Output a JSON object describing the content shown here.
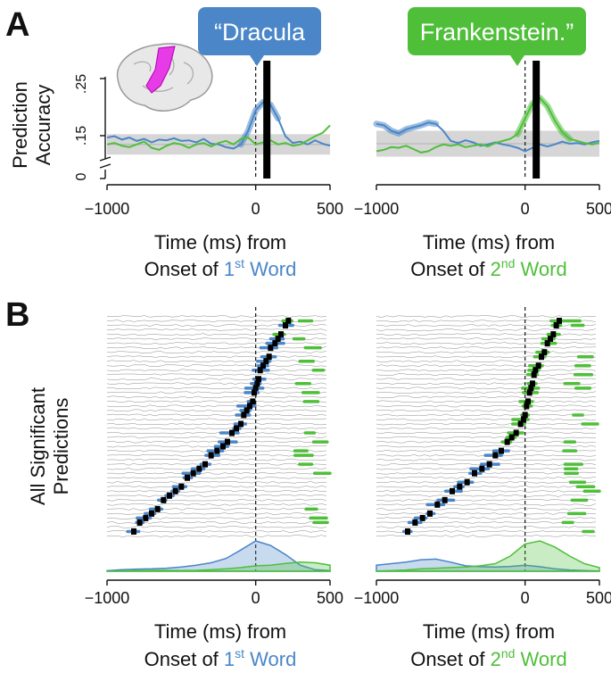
{
  "colors": {
    "blue": "#4a86c8",
    "green": "#4fbf3a",
    "magenta": "#e63be6",
    "band": "#d6d6d6",
    "trace": "#8a8a8a"
  },
  "panels": {
    "a": {
      "label": "A"
    },
    "b": {
      "label": "B"
    }
  },
  "callouts": {
    "word1": "“Dracula",
    "word2": "Frankenstein.”"
  },
  "axis": {
    "ylabel_line1": "Prediction",
    "ylabel_line2": "Accuracy",
    "raster_ylabel_line1": "All Significant",
    "raster_ylabel_line2": "Predictions",
    "xlabel_line1": "Time (ms) from",
    "xlabel_left": {
      "prefix": "Onset of ",
      "ord_num": "1",
      "ord_sup": "st",
      "word": " Word"
    },
    "xlabel_right": {
      "prefix": "Onset of ",
      "ord_num": "2",
      "ord_sup": "nd",
      "word": " Word"
    }
  },
  "chart_data": [
    {
      "id": "a-left",
      "type": "line",
      "title": "",
      "xlabel": "Time (ms) from Onset of 1st Word",
      "ylabel": "Prediction Accuracy",
      "xlim": [
        -1000,
        500
      ],
      "ylim": [
        0.1,
        0.27
      ],
      "x_ticks": [
        -1000,
        0,
        500
      ],
      "x_tick_labels": [
        "−1000",
        "0",
        "500"
      ],
      "y_ticks": [
        0.1,
        0.15,
        0.25
      ],
      "y_tick_labels": [
        "0",
        ".15",
        ".25"
      ],
      "axis_break": true,
      "null_band": {
        "x": [
          -1000,
          500
        ],
        "lower": 0.135,
        "upper": 0.165
      },
      "null_mean": 0.15,
      "vline_x": 0,
      "bar_x": 75,
      "series": [
        {
          "name": "word1",
          "color": "blue",
          "x": [
            -1000,
            -950,
            -900,
            -850,
            -800,
            -750,
            -700,
            -650,
            -600,
            -550,
            -500,
            -450,
            -400,
            -350,
            -300,
            -250,
            -200,
            -150,
            -100,
            -50,
            0,
            50,
            100,
            150,
            200,
            250,
            300,
            350,
            400,
            450,
            500
          ],
          "y": [
            0.16,
            0.162,
            0.157,
            0.16,
            0.155,
            0.158,
            0.153,
            0.157,
            0.156,
            0.159,
            0.155,
            0.156,
            0.153,
            0.158,
            0.151,
            0.15,
            0.146,
            0.144,
            0.15,
            0.17,
            0.2,
            0.212,
            0.208,
            0.188,
            0.162,
            0.152,
            0.154,
            0.15,
            0.156,
            0.151,
            0.148
          ],
          "significant_from": -100,
          "significant_to": 160
        },
        {
          "name": "word2",
          "color": "green",
          "x": [
            -1000,
            -950,
            -900,
            -850,
            -800,
            -750,
            -700,
            -650,
            -600,
            -550,
            -500,
            -450,
            -400,
            -350,
            -300,
            -250,
            -200,
            -150,
            -100,
            -50,
            0,
            50,
            100,
            150,
            200,
            250,
            300,
            350,
            400,
            450,
            500
          ],
          "y": [
            0.15,
            0.152,
            0.148,
            0.146,
            0.15,
            0.154,
            0.145,
            0.142,
            0.148,
            0.152,
            0.15,
            0.145,
            0.15,
            0.152,
            0.147,
            0.152,
            0.155,
            0.15,
            0.158,
            0.16,
            0.15,
            0.153,
            0.156,
            0.15,
            0.152,
            0.148,
            0.15,
            0.156,
            0.162,
            0.167,
            0.178
          ]
        }
      ]
    },
    {
      "id": "a-right",
      "type": "line",
      "title": "",
      "xlabel": "Time (ms) from Onset of 2nd Word",
      "ylabel": "Prediction Accuracy",
      "xlim": [
        -1000,
        500
      ],
      "ylim": [
        0.1,
        0.27
      ],
      "x_ticks": [
        -1000,
        0,
        500
      ],
      "x_tick_labels": [
        "−1000",
        "0",
        "500"
      ],
      "null_band": {
        "x": [
          -1000,
          500
        ],
        "lower": 0.132,
        "upper": 0.17
      },
      "null_mean": 0.151,
      "vline_x": 0,
      "bar_x": 75,
      "series": [
        {
          "name": "word1",
          "color": "blue",
          "x": [
            -1000,
            -950,
            -900,
            -850,
            -800,
            -750,
            -700,
            -650,
            -600,
            -550,
            -500,
            -450,
            -400,
            -350,
            -300,
            -250,
            -200,
            -150,
            -100,
            -50,
            0,
            50,
            100,
            150,
            200,
            250,
            300,
            350,
            400,
            450,
            500
          ],
          "y": [
            0.18,
            0.178,
            0.17,
            0.166,
            0.172,
            0.175,
            0.178,
            0.182,
            0.18,
            0.17,
            0.155,
            0.152,
            0.156,
            0.153,
            0.148,
            0.15,
            0.153,
            0.15,
            0.148,
            0.145,
            0.14,
            0.145,
            0.15,
            0.147,
            0.15,
            0.154,
            0.151,
            0.152,
            0.15,
            0.153,
            0.155
          ],
          "significant_from": -1000,
          "significant_to": -570
        },
        {
          "name": "word2",
          "color": "green",
          "x": [
            -1000,
            -950,
            -900,
            -850,
            -800,
            -750,
            -700,
            -650,
            -600,
            -550,
            -500,
            -450,
            -400,
            -350,
            -300,
            -250,
            -200,
            -150,
            -100,
            -50,
            0,
            50,
            100,
            150,
            200,
            250,
            300,
            350,
            400,
            450,
            500
          ],
          "y": [
            0.14,
            0.142,
            0.146,
            0.145,
            0.148,
            0.143,
            0.138,
            0.14,
            0.146,
            0.15,
            0.148,
            0.15,
            0.146,
            0.148,
            0.15,
            0.147,
            0.152,
            0.155,
            0.158,
            0.165,
            0.188,
            0.21,
            0.218,
            0.206,
            0.185,
            0.168,
            0.158,
            0.155,
            0.152,
            0.15,
            0.152
          ],
          "significant_from": -60,
          "significant_to": 300
        }
      ]
    },
    {
      "id": "b-left",
      "type": "scatter",
      "title": "All Significant Predictions",
      "xlabel": "Time (ms) from Onset of 1st Word",
      "xlim": [
        -1000,
        500
      ],
      "x_ticks": [
        -1000,
        0,
        500
      ],
      "x_tick_labels": [
        "−1000",
        "0",
        "500"
      ],
      "n_rows": 50,
      "description": "Each row is one significant electrode; colored segments mark intervals of significant prediction of word 1 (blue) or word 2 (green); black marks = peak times, sorted top to bottom by latency; density curves below.",
      "peaks": [
        220,
        200,
        170,
        150,
        130,
        100,
        90,
        70,
        50,
        30,
        20,
        10,
        0,
        -10,
        -20,
        -40,
        -60,
        -80,
        -100,
        -130,
        -160,
        -190,
        -220,
        -260,
        -300,
        -340,
        -380,
        -420,
        -460,
        -500,
        -540,
        -580,
        -620,
        -660,
        -700,
        -740,
        -780,
        -820
      ],
      "density": {
        "x": [
          -1000,
          -900,
          -800,
          -700,
          -600,
          -500,
          -400,
          -300,
          -200,
          -100,
          0,
          100,
          200,
          300,
          400,
          500
        ],
        "blue": [
          0.02,
          0.05,
          0.07,
          0.08,
          0.1,
          0.14,
          0.2,
          0.28,
          0.42,
          0.7,
          1.0,
          0.85,
          0.55,
          0.2,
          0.05,
          0.02
        ],
        "green": [
          0.0,
          0.01,
          0.02,
          0.03,
          0.03,
          0.02,
          0.03,
          0.05,
          0.08,
          0.12,
          0.18,
          0.2,
          0.26,
          0.3,
          0.28,
          0.2
        ]
      }
    },
    {
      "id": "b-right",
      "type": "scatter",
      "title": "All Significant Predictions",
      "xlabel": "Time (ms) from Onset of 2nd Word",
      "xlim": [
        -1000,
        500
      ],
      "x_ticks": [
        -1000,
        0,
        500
      ],
      "x_tick_labels": [
        "−1000",
        "0",
        "500"
      ],
      "n_rows": 50,
      "description": "Each row is one significant electrode; colored segments mark intervals of significant prediction of word 1 (blue) or word 2 (green); black marks = peak times, sorted top to bottom by latency; density curves below.",
      "peaks": [
        230,
        210,
        190,
        170,
        150,
        130,
        110,
        90,
        70,
        60,
        50,
        40,
        30,
        20,
        10,
        0,
        -10,
        -30,
        -60,
        -90,
        -120,
        -160,
        -200,
        -240,
        -290,
        -340,
        -390,
        -440,
        -490,
        -540,
        -590,
        -640,
        -690,
        -740,
        -790
      ],
      "density": {
        "x": [
          -1000,
          -900,
          -800,
          -700,
          -600,
          -500,
          -400,
          -300,
          -200,
          -100,
          0,
          100,
          200,
          300,
          400,
          500
        ],
        "blue": [
          0.2,
          0.25,
          0.3,
          0.38,
          0.4,
          0.3,
          0.18,
          0.15,
          0.14,
          0.16,
          0.2,
          0.15,
          0.08,
          0.04,
          0.02,
          0.01
        ],
        "green": [
          0.01,
          0.02,
          0.04,
          0.08,
          0.1,
          0.12,
          0.14,
          0.18,
          0.25,
          0.5,
          0.9,
          1.0,
          0.8,
          0.5,
          0.25,
          0.12
        ]
      }
    }
  ]
}
